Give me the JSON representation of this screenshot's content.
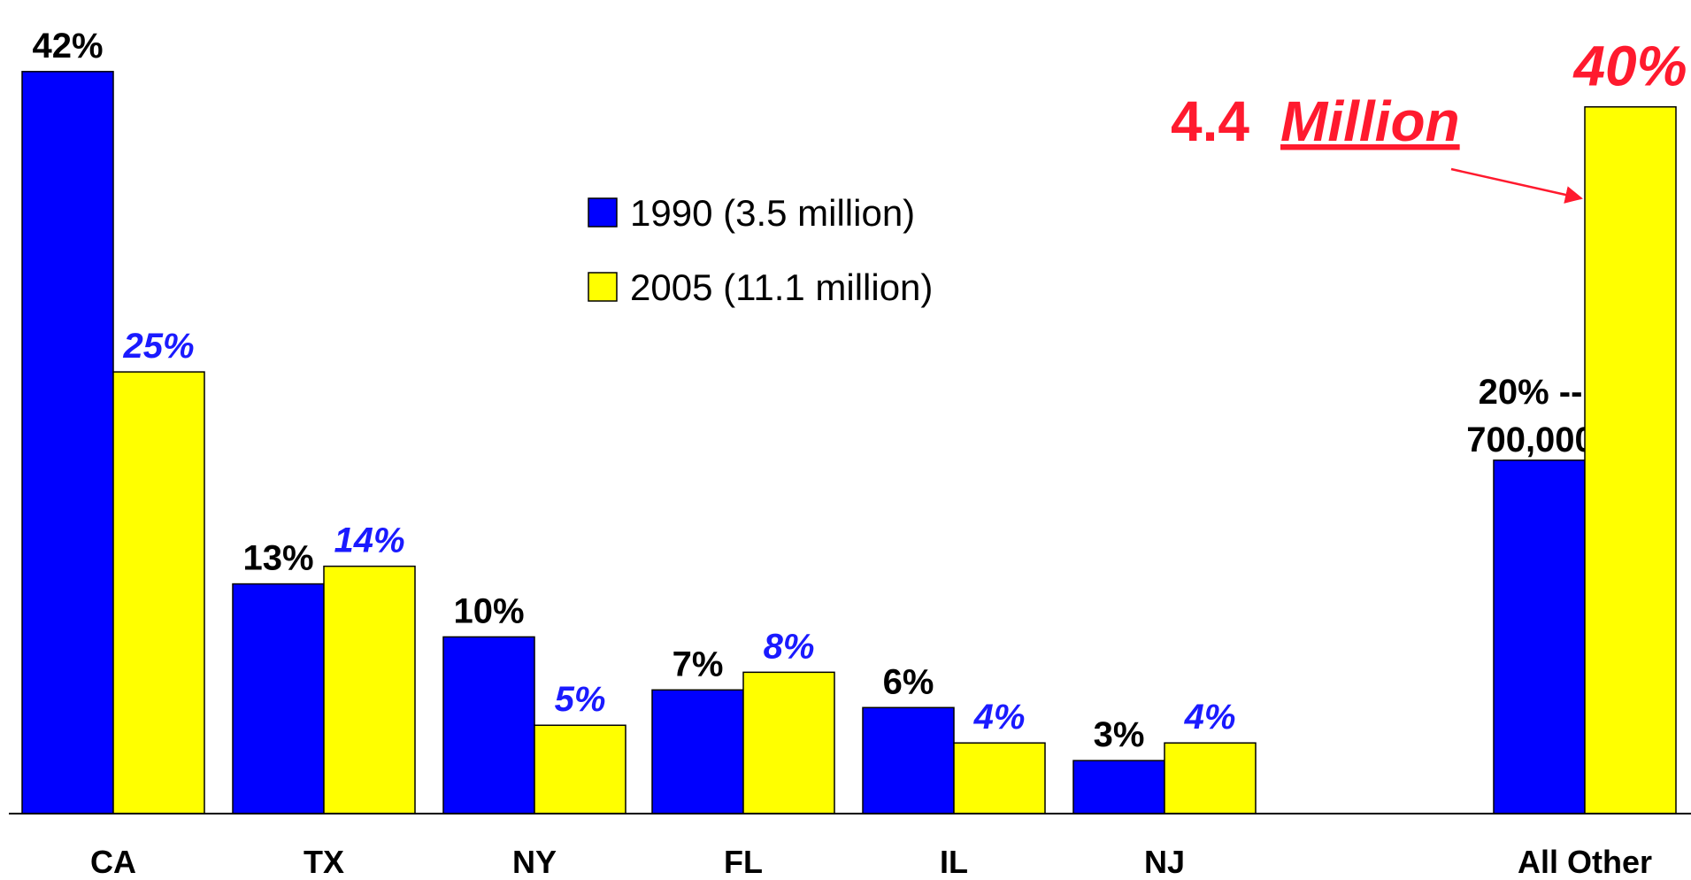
{
  "chart_data": {
    "type": "bar",
    "categories": [
      "CA",
      "TX",
      "NY",
      "FL",
      "IL",
      "NJ",
      "All Other"
    ],
    "series": [
      {
        "name": "1990 (3.5 million)",
        "color": "#0000ff",
        "label_color": "#000000",
        "values": [
          42,
          13,
          10,
          7,
          6,
          3,
          20
        ],
        "value_labels": [
          "42%",
          "13%",
          "10%",
          "7%",
          "6%",
          "3%",
          "20% -- 700,000"
        ]
      },
      {
        "name": "2005 (11.1 million)",
        "color": "#ffff00",
        "label_color": "#1a1aff",
        "values": [
          25,
          14,
          5,
          8,
          4,
          4,
          40
        ],
        "value_labels": [
          "25%",
          "14%",
          "5%",
          "8%",
          "4%",
          "4%",
          "40%"
        ]
      }
    ],
    "ylim": [
      0,
      46
    ],
    "annotation": {
      "number": "4.4",
      "unit": "Million",
      "color": "#ff1a2e"
    }
  }
}
